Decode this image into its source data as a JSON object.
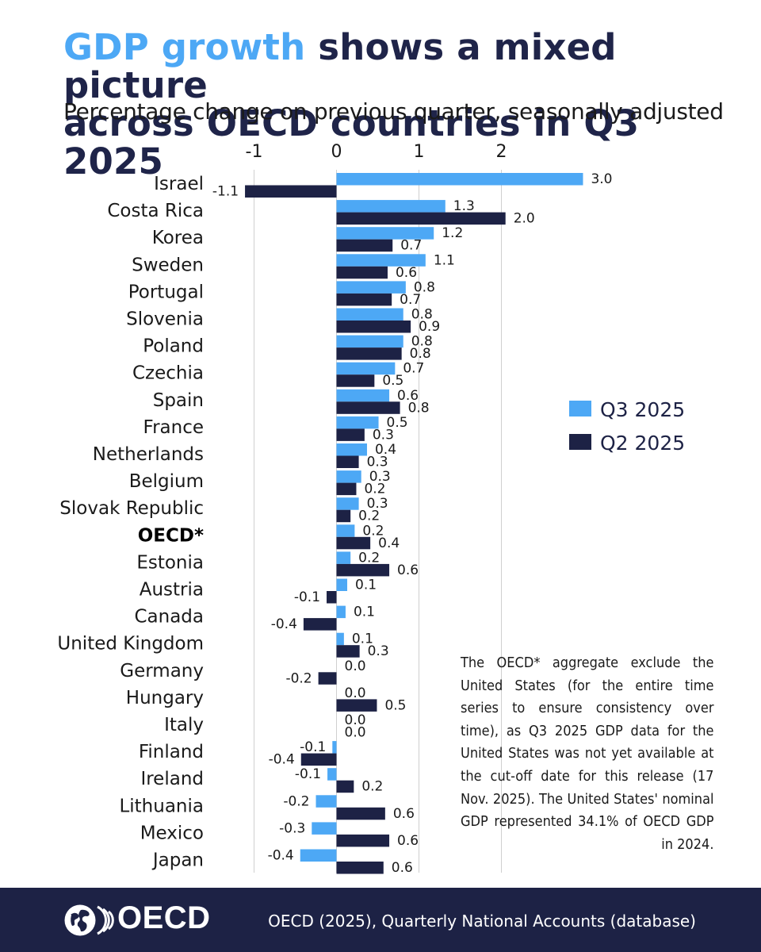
{
  "header": {
    "title_highlight": "GDP growth",
    "title_rest_line1": " shows a mixed picture",
    "title_line2": "across OECD countries in Q3 2025",
    "subtitle": "Percentage change on previous quarter, seasonally adjusted"
  },
  "note": "The OECD* aggregate exclude the United States (for the entire time series to ensure consistency over time), as Q3 2025 GDP data for the United States was not yet available at the cut-off date for this release (17 Nov. 2025). The United States' nominal GDP represented 34.1% of OECD GDP in 2024.",
  "footer": {
    "logo_text": "OECD",
    "source": "OECD (2025), Quarterly National Accounts (database)"
  },
  "colors": {
    "q3": "#4da8f5",
    "q2": "#1d2245",
    "grid": "#cfcfcf",
    "text": "#1a1a1a",
    "footer_bg": "#1d2245"
  },
  "chart_data": {
    "type": "bar",
    "orientation": "horizontal",
    "title": "GDP growth shows a mixed picture across OECD countries in Q3 2025",
    "subtitle": "Percentage change on previous quarter, seasonally adjusted",
    "x_ticks": [
      -1,
      0,
      1,
      2
    ],
    "x_tick_labels": [
      "-1",
      "0",
      "1",
      "2"
    ],
    "xlim": [
      -1.2,
      3.0
    ],
    "grid": true,
    "legend_position": "right",
    "categories": [
      "Israel",
      "Costa Rica",
      "Korea",
      "Sweden",
      "Portugal",
      "Slovenia",
      "Poland",
      "Czechia",
      "Spain",
      "France",
      "Netherlands",
      "Belgium",
      "Slovak Republic",
      "OECD*",
      "Estonia",
      "Austria",
      "Canada",
      "United Kingdom",
      "Germany",
      "Hungary",
      "Italy",
      "Finland",
      "Ireland",
      "Lithuania",
      "Mexico",
      "Japan"
    ],
    "bold_categories": [
      "OECD*"
    ],
    "series": [
      {
        "name": "Q3 2025",
        "values": [
          3.0,
          1.3,
          1.2,
          1.1,
          0.8,
          0.8,
          0.8,
          0.7,
          0.6,
          0.5,
          0.4,
          0.3,
          0.3,
          0.2,
          0.2,
          0.1,
          0.1,
          0.1,
          0.0,
          0.0,
          0.0,
          -0.1,
          -0.1,
          -0.2,
          -0.3,
          -0.4
        ],
        "bar_values": [
          2.99,
          1.32,
          1.18,
          1.08,
          0.84,
          0.81,
          0.81,
          0.71,
          0.64,
          0.51,
          0.37,
          0.3,
          0.27,
          0.22,
          0.17,
          0.13,
          0.11,
          0.09,
          0.0,
          0.0,
          0.0,
          -0.05,
          -0.11,
          -0.25,
          -0.3,
          -0.44
        ],
        "labels": [
          "3.0",
          "1.3",
          "1.2",
          "1.1",
          "0.8",
          "0.8",
          "0.8",
          "0.7",
          "0.6",
          "0.5",
          "0.4",
          "0.3",
          "0.3",
          "0.2",
          "0.2",
          "0.1",
          "0.1",
          "0.1",
          "0.0",
          "0.0",
          "0.0",
          "-0.1",
          "-0.1",
          "-0.2",
          "-0.3",
          "-0.4"
        ]
      },
      {
        "name": "Q2 2025",
        "values": [
          -1.1,
          2.0,
          0.7,
          0.6,
          0.7,
          0.9,
          0.8,
          0.5,
          0.8,
          0.3,
          0.3,
          0.2,
          0.2,
          0.4,
          0.6,
          -0.1,
          -0.4,
          0.3,
          -0.2,
          0.5,
          0.0,
          -0.4,
          0.2,
          0.6,
          0.6,
          0.6
        ],
        "bar_values": [
          -1.11,
          2.05,
          0.68,
          0.62,
          0.67,
          0.9,
          0.79,
          0.46,
          0.77,
          0.34,
          0.27,
          0.24,
          0.17,
          0.41,
          0.64,
          -0.12,
          -0.4,
          0.28,
          -0.22,
          0.49,
          0.0,
          -0.43,
          0.21,
          0.59,
          0.64,
          0.57
        ],
        "labels": [
          "-1.1",
          "2.0",
          "0.7",
          "0.6",
          "0.7",
          "0.9",
          "0.8",
          "0.5",
          "0.8",
          "0.3",
          "0.3",
          "0.2",
          "0.2",
          "0.4",
          "0.6",
          "-0.1",
          "-0.4",
          "0.3",
          "-0.2",
          "0.5",
          "0.0",
          "-0.4",
          "0.2",
          "0.6",
          "0.6",
          "0.6"
        ]
      }
    ]
  }
}
